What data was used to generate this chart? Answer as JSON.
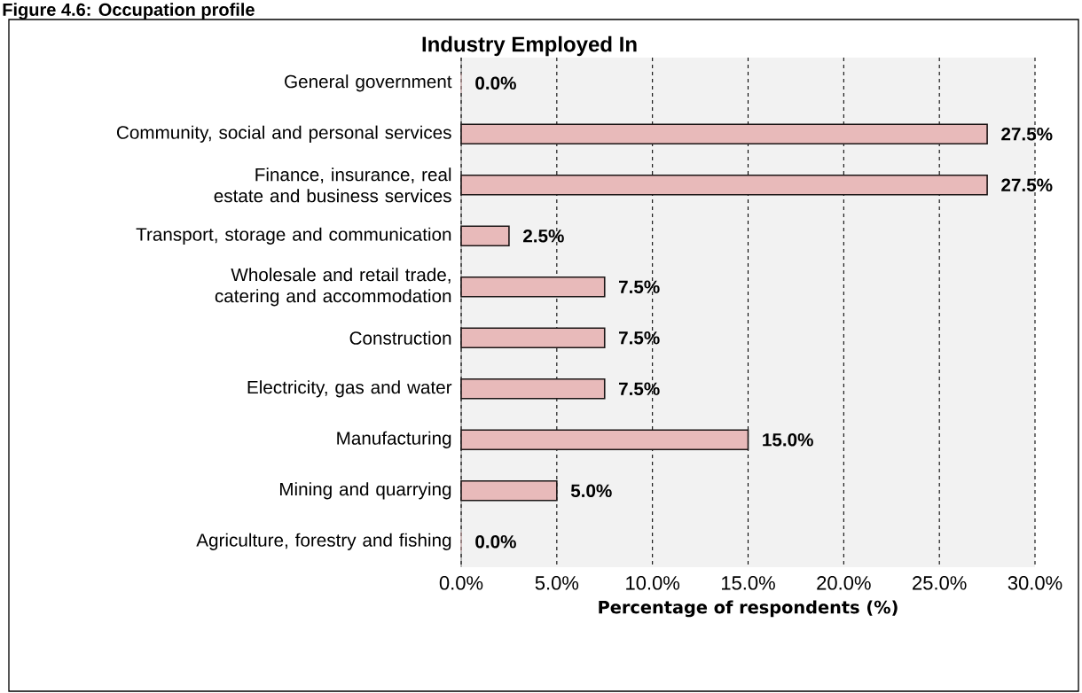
{
  "chart_data": {
    "type": "bar",
    "orientation": "horizontal",
    "title": "Industry Employed In",
    "xlabel": "Percentage of respondents (%)",
    "annotations": [
      "Figure 4.6: Occupation profile"
    ],
    "categories": [
      "General government",
      "Community, social and personal services",
      "Finance, insurance, real estate and business services",
      "Transport, storage and communication",
      "Wholesale and retail trade, catering and accommodation",
      "Construction",
      "Electricity, gas and water",
      "Manufacturing",
      "Mining and quarrying",
      "Agriculture, forestry and fishing"
    ],
    "values": [
      0.0,
      27.5,
      27.5,
      2.5,
      7.5,
      7.5,
      7.5,
      15.0,
      5.0,
      0.0
    ],
    "value_labels": [
      "0.0%",
      "27.5%",
      "27.5%",
      "2.5%",
      "7.5%",
      "7.5%",
      "7.5%",
      "15.0%",
      "5.0%",
      "0.0%"
    ],
    "color": "#e8baba",
    "xlim": [
      0,
      30
    ],
    "xticks": [
      {
        "value": 0,
        "label": "0.0%"
      },
      {
        "value": 5,
        "label": "5.0%"
      },
      {
        "value": 10,
        "label": "10.0%"
      },
      {
        "value": 15,
        "label": "15.0%"
      },
      {
        "value": 20,
        "label": "20.0%"
      },
      {
        "value": 25,
        "label": "25.0%"
      },
      {
        "value": 30,
        "label": "30.0%"
      }
    ],
    "grid": "x"
  }
}
